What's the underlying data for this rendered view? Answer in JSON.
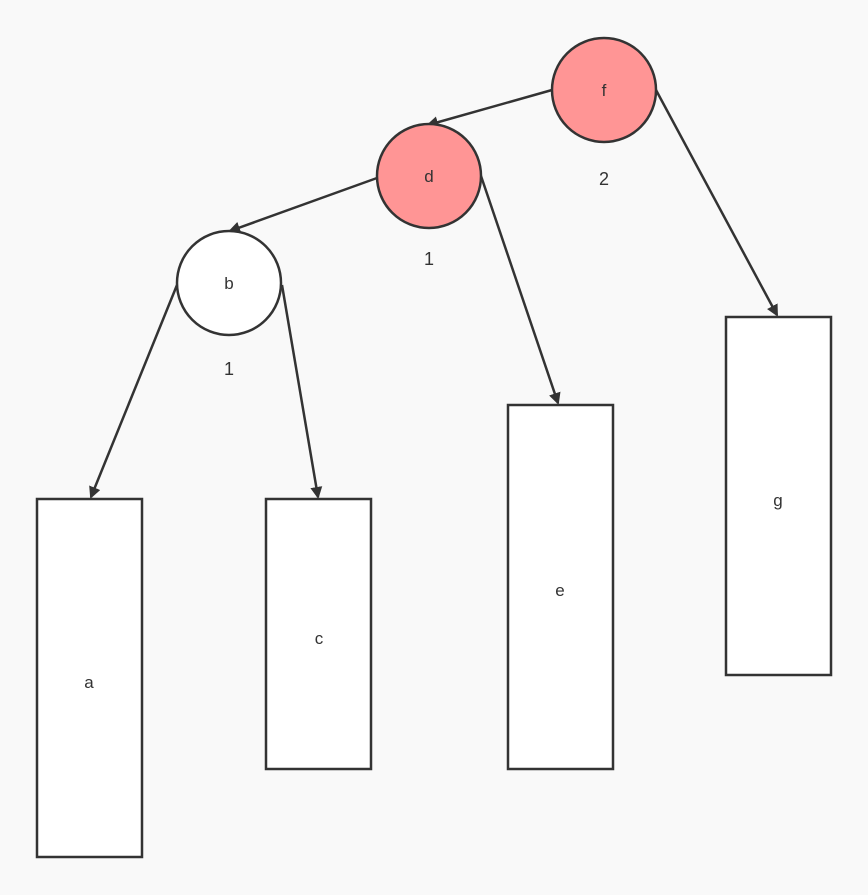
{
  "colors": {
    "background": "#f9f9f9",
    "stroke": "#333333",
    "highlight_fill": "#ff9595",
    "normal_fill": "#ffffff"
  },
  "nodes": {
    "f": {
      "label": "f",
      "height": "2",
      "fill": "#ff9595"
    },
    "d": {
      "label": "d",
      "height": "1",
      "fill": "#ff9595"
    },
    "b": {
      "label": "b",
      "height": "1",
      "fill": "#ffffff"
    }
  },
  "leaves": {
    "a": {
      "label": "a"
    },
    "c": {
      "label": "c"
    },
    "e": {
      "label": "e"
    },
    "g": {
      "label": "g"
    }
  },
  "edges": [
    {
      "from": "f",
      "to": "d"
    },
    {
      "from": "f",
      "to": "g"
    },
    {
      "from": "d",
      "to": "b"
    },
    {
      "from": "d",
      "to": "e"
    },
    {
      "from": "b",
      "to": "a"
    },
    {
      "from": "b",
      "to": "c"
    }
  ]
}
